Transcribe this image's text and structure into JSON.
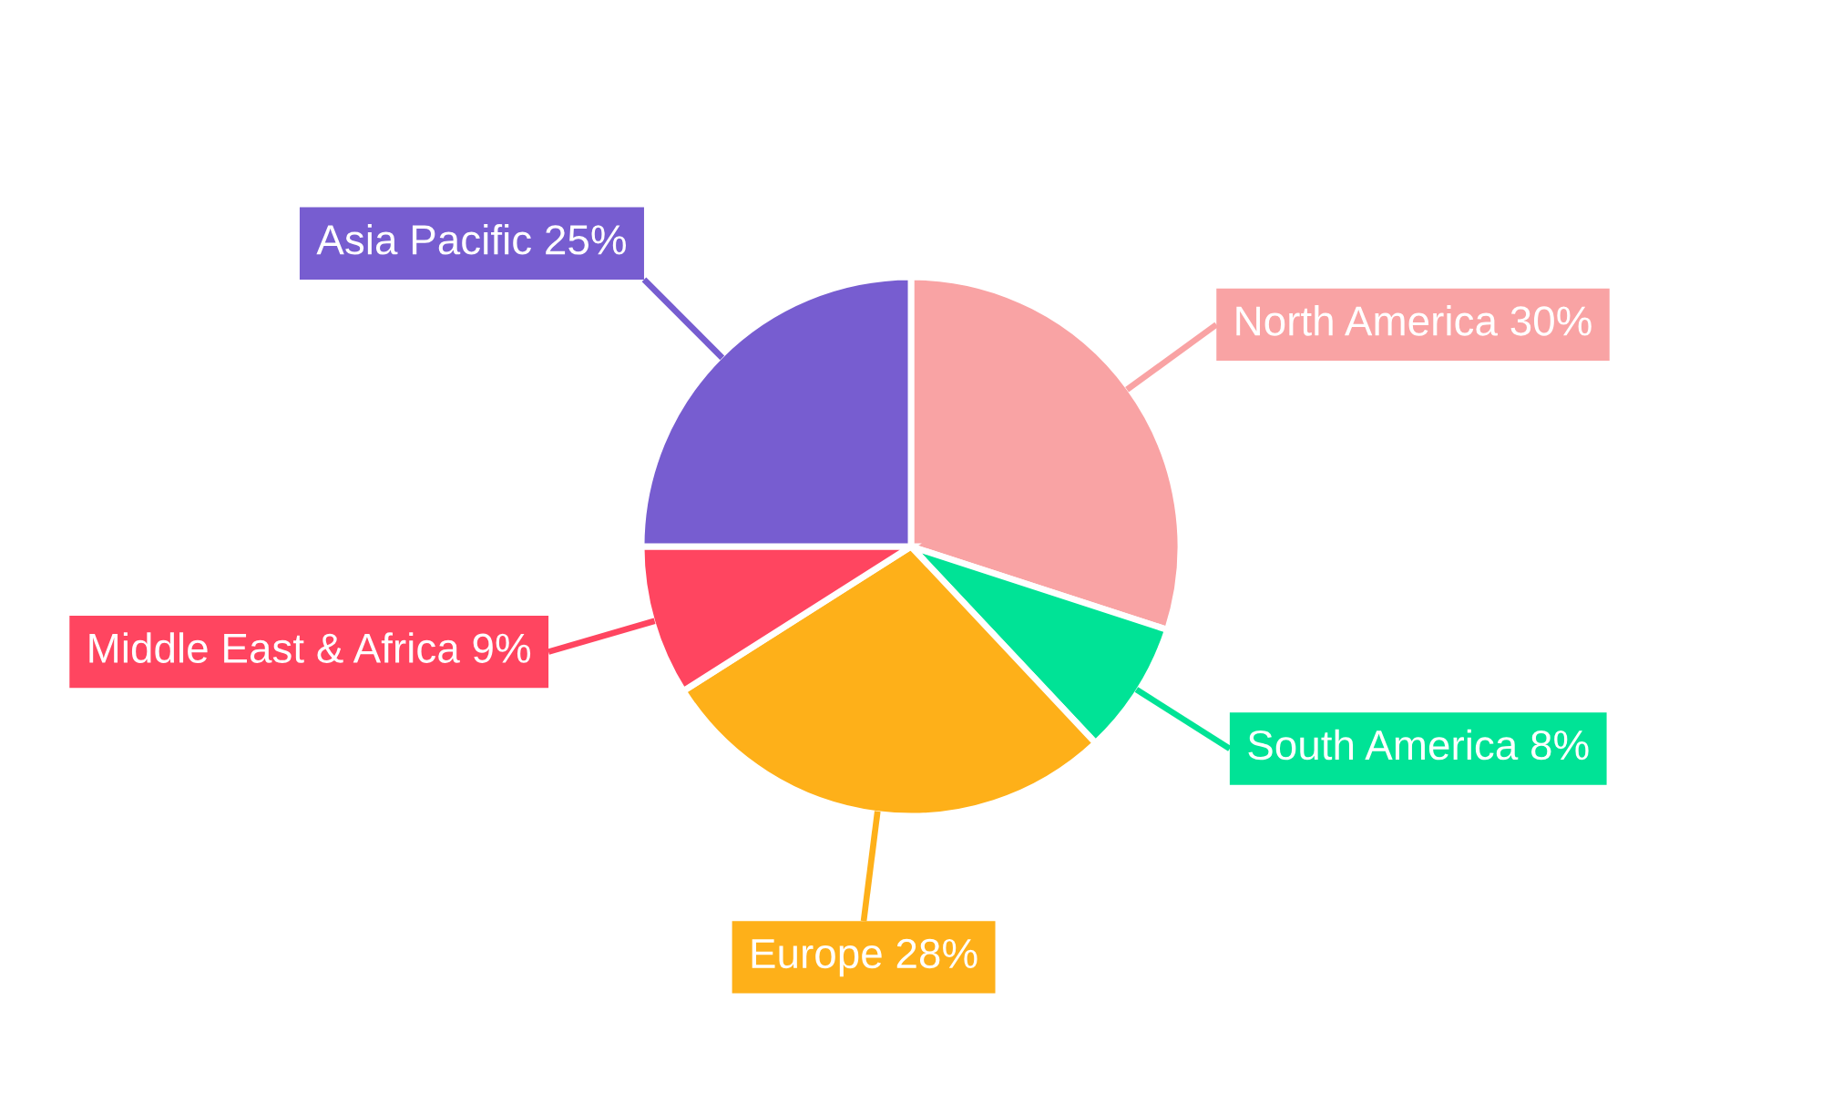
{
  "chart_data": {
    "type": "pie",
    "categories": [
      "North America",
      "South America",
      "Europe",
      "Middle East & Africa",
      "Asia Pacific"
    ],
    "values": [
      30,
      8,
      28,
      9,
      25
    ],
    "value_labels": [
      "30%",
      "8%",
      "28%",
      "9%",
      "25%"
    ],
    "colors": [
      "#f9a3a4",
      "#00e396",
      "#feb019",
      "#ff4560",
      "#775dd0"
    ]
  }
}
